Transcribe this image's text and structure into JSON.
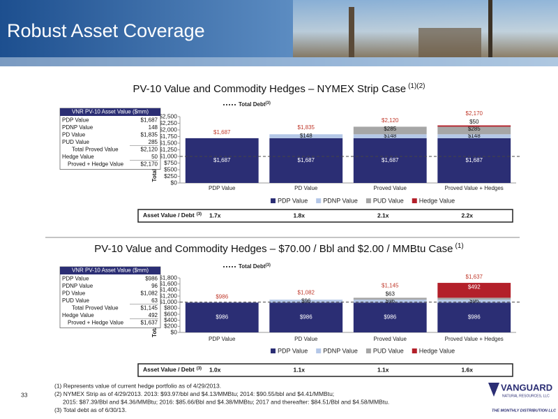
{
  "header": {
    "title": "Robust Asset Coverage"
  },
  "chart_data": [
    {
      "type": "stacked_bar",
      "title": "PV-10 Value and Commodity Hedges – NYMEX Strip Case",
      "title_note": "(1)(2)",
      "y_label": "Total PV-10 Value ($mm)",
      "categories": [
        "PDP Value",
        "PD Value",
        "Proved Value",
        "Proved Value + Hedges"
      ],
      "series": [
        {
          "name": "PDP Value",
          "color": "#2b2e74",
          "values": [
            1687,
            1687,
            1687,
            1687
          ],
          "value_labels": [
            "$1,687",
            "$1,687",
            "$1,687",
            "$1,687"
          ]
        },
        {
          "name": "PDNP Value",
          "color": "#b4c7e7",
          "values": [
            null,
            148,
            148,
            148
          ],
          "value_labels": [
            null,
            "$148",
            "$148",
            "$148"
          ]
        },
        {
          "name": "PUD Value",
          "color": "#a6a6a6",
          "values": [
            null,
            null,
            285,
            285
          ],
          "value_labels": [
            null,
            null,
            "$285",
            "$285"
          ]
        },
        {
          "name": "Hedge Value",
          "color": "#b3202a",
          "values": [
            null,
            null,
            null,
            50
          ],
          "value_labels": [
            null,
            null,
            null,
            "$50"
          ]
        }
      ],
      "totals": {
        "color": "#c0392b",
        "values": [
          1687,
          1835,
          2120,
          2170
        ],
        "value_labels": [
          "$1,687",
          "$1,835",
          "$2,120",
          "$2,170"
        ]
      },
      "debt": {
        "name": "Total Debt",
        "note": "(3)",
        "value": 1000
      },
      "ylim": [
        0,
        2500
      ],
      "yticks": [
        {
          "value": 0,
          "label": "$0"
        },
        {
          "value": 250,
          "label": "$250"
        },
        {
          "value": 500,
          "label": "$500"
        },
        {
          "value": 750,
          "label": "$750"
        },
        {
          "value": 1000,
          "label": "$1,000"
        },
        {
          "value": 1250,
          "label": "$1,250"
        },
        {
          "value": 1500,
          "label": "$1,500"
        },
        {
          "value": 1750,
          "label": "$1,750"
        },
        {
          "value": 2000,
          "label": "$2,000"
        },
        {
          "value": 2250,
          "label": "$2,250"
        },
        {
          "value": 2500,
          "label": "$2,500"
        }
      ]
    },
    {
      "type": "stacked_bar",
      "title": "PV-10 Value and Commodity Hedges – $70.00 / Bbl and $2.00 / MMBtu Case",
      "title_note": "(1)",
      "y_label": "Total PV-10 Value ($mm)",
      "categories": [
        "PDP Value",
        "PD Value",
        "Proved Value",
        "Proved Value + Hedges"
      ],
      "series": [
        {
          "name": "PDP Value",
          "color": "#2b2e74",
          "values": [
            986,
            986,
            986,
            986
          ],
          "value_labels": [
            "$986",
            "$986",
            "$986",
            "$986"
          ]
        },
        {
          "name": "PDNP Value",
          "color": "#b4c7e7",
          "values": [
            null,
            96,
            96,
            96
          ],
          "value_labels": [
            null,
            "$96",
            "$96",
            "$96"
          ]
        },
        {
          "name": "PUD Value",
          "color": "#a6a6a6",
          "values": [
            null,
            null,
            63,
            63
          ],
          "value_labels": [
            null,
            null,
            "$63",
            "$63"
          ]
        },
        {
          "name": "Hedge Value",
          "color": "#b3202a",
          "values": [
            null,
            null,
            null,
            492
          ],
          "value_labels": [
            null,
            null,
            null,
            "$492"
          ]
        }
      ],
      "totals": {
        "color": "#c0392b",
        "values": [
          986,
          1082,
          1145,
          1637
        ],
        "value_labels": [
          "$986",
          "$1,082",
          "$1,145",
          "$1,637"
        ]
      },
      "debt": {
        "name": "Total Debt",
        "note": "(3)",
        "value": 1000
      },
      "ylim": [
        0,
        1800
      ],
      "yticks": [
        {
          "value": 0,
          "label": "$0"
        },
        {
          "value": 200,
          "label": "$200"
        },
        {
          "value": 400,
          "label": "$400"
        },
        {
          "value": 600,
          "label": "$600"
        },
        {
          "value": 800,
          "label": "$800"
        },
        {
          "value": 1000,
          "label": "$1,000"
        },
        {
          "value": 1200,
          "label": "$1,200"
        },
        {
          "value": 1400,
          "label": "$1,400"
        },
        {
          "value": 1600,
          "label": "$1,600"
        },
        {
          "value": 1800,
          "label": "$1,800"
        }
      ]
    }
  ],
  "tables": [
    {
      "title": "VNR PV-10 Asset Value ($mm)",
      "rows": [
        [
          "PDP Value",
          "$1,687"
        ],
        [
          "PDNP Value",
          "148"
        ],
        [
          "PD Value",
          "$1,835"
        ],
        [
          "PUD Value",
          "285"
        ],
        [
          "Total Proved Value",
          "$2,120"
        ],
        [
          "Hedge Value",
          "50"
        ],
        [
          "Proved + Hedge Value",
          "$2,170"
        ]
      ]
    },
    {
      "title": "VNR PV-10 Asset Value ($mm)",
      "rows": [
        [
          "PDP Value",
          "$986"
        ],
        [
          "PDNP Value",
          "96"
        ],
        [
          "PD Value",
          "$1,082"
        ],
        [
          "PUD Value",
          "63"
        ],
        [
          "Total Proved Value",
          "$1,145"
        ],
        [
          "Hedge Value",
          "492"
        ],
        [
          "Proved + Hedge Value",
          "$1,637"
        ]
      ]
    }
  ],
  "asset_debt": [
    {
      "label": "Asset Value / Debt",
      "note": "(3)",
      "values": [
        "1.7x",
        "1.8x",
        "2.1x",
        "2.2x"
      ]
    },
    {
      "label": "Asset Value / Debt",
      "note": "(3)",
      "values": [
        "1.0x",
        "1.1x",
        "1.1x",
        "1.6x"
      ]
    }
  ],
  "footnotes": [
    "(1) Represents value of current hedge portfolio as of 4/29/2013.",
    "(2) NYMEX Strip as of 4/29/2013. 2013: $93.97/bbl and $4.13/MMBtu; 2014: $90.55/bbl and $4.41/MMBtu;",
    "2015: $87.39/Bbl and $4.36/MMBtu; 2016: $85.66/Bbl and $4.38/MMBtu; 2017 and thereafter: $84.51/Bbl and $4.58/MMBtu.",
    "(3) Total debt as of 6/30/13."
  ],
  "page_number": "33",
  "logo": {
    "name": "VANGUARD",
    "subtitle": "NATURAL RESOURCES, LLC",
    "tagline": "THE MONTHLY DISTRIBUTION LLC"
  }
}
